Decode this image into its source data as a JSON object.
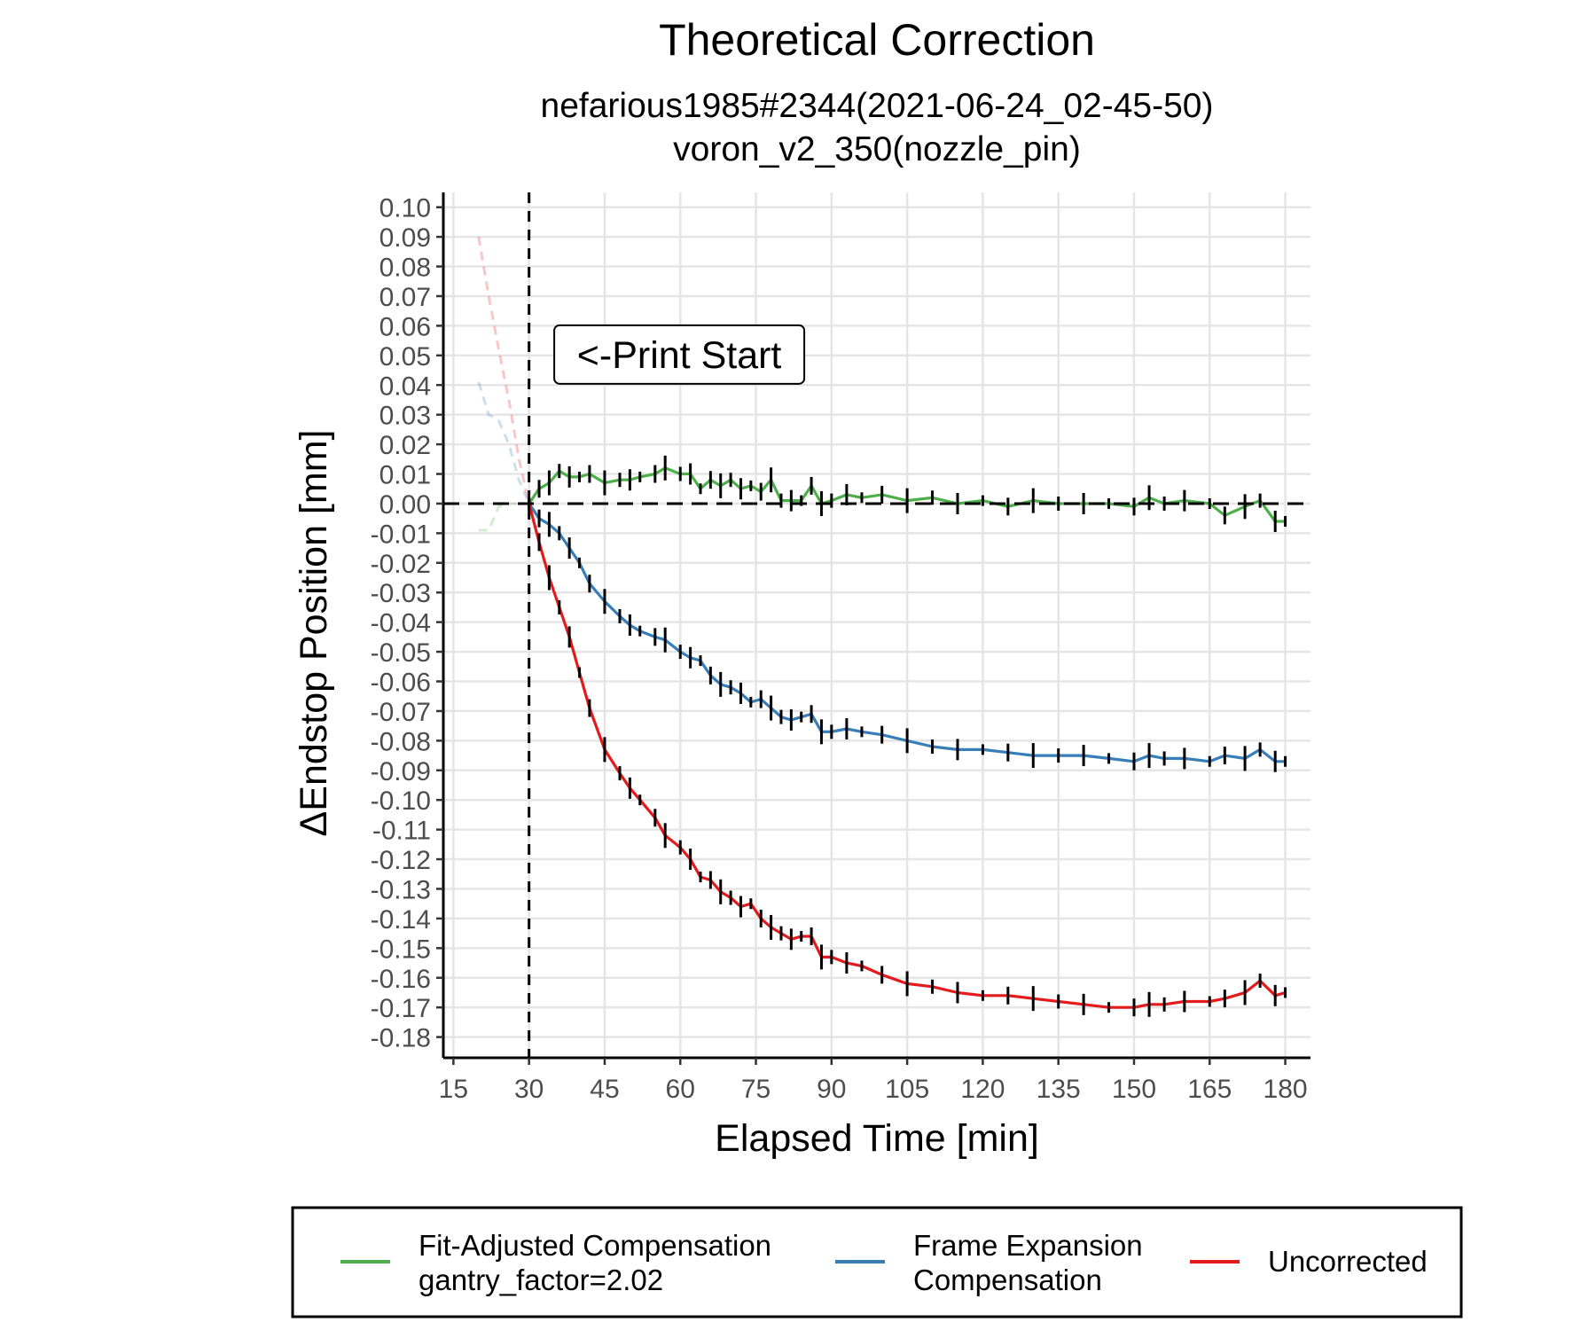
{
  "chart_data": {
    "type": "line",
    "title": "Theoretical Correction",
    "subtitle_lines": [
      "nefarious1985#2344(2021-06-24_02-45-50)",
      "voron_v2_350(nozzle_pin)"
    ],
    "xlabel": "Elapsed Time [min]",
    "ylabel": "ΔEndstop Position [mm]",
    "xlim": [
      13,
      185
    ],
    "ylim": [
      -0.187,
      0.105
    ],
    "xticks": [
      15,
      30,
      45,
      60,
      75,
      90,
      105,
      120,
      135,
      150,
      165,
      180
    ],
    "xtick_labels": [
      "15",
      "30",
      "45",
      "60",
      "75",
      "90",
      "105",
      "120",
      "135",
      "150",
      "165",
      "180"
    ],
    "yticks": [
      0.1,
      0.09,
      0.08,
      0.07,
      0.06,
      0.05,
      0.04,
      0.03,
      0.02,
      0.01,
      0.0,
      -0.01,
      -0.02,
      -0.03,
      -0.04,
      -0.05,
      -0.06,
      -0.07,
      -0.08,
      -0.09,
      -0.1,
      -0.11,
      -0.12,
      -0.13,
      -0.14,
      -0.15,
      -0.16,
      -0.17,
      -0.18
    ],
    "ytick_labels": [
      "0.10",
      "0.09",
      "0.08",
      "0.07",
      "0.06",
      "0.05",
      "0.04",
      "0.03",
      "0.02",
      "0.01",
      "0.00",
      "-0.01",
      "-0.02",
      "-0.03",
      "-0.04",
      "-0.05",
      "-0.06",
      "-0.07",
      "-0.08",
      "-0.09",
      "-0.10",
      "-0.11",
      "-0.12",
      "-0.13",
      "-0.14",
      "-0.15",
      "-0.16",
      "-0.17",
      "-0.18"
    ],
    "grid": true,
    "reference_lines": {
      "vertical_x": 30,
      "horizontal_y": 0.0,
      "style": "dashed"
    },
    "annotation": {
      "text": "<-Print Start",
      "x": 35,
      "y": 0.05
    },
    "pre_print_series": [
      {
        "series_ref": "Uncorrected",
        "x": [
          20,
          22,
          24,
          26,
          28,
          30
        ],
        "y": [
          0.09,
          0.07,
          0.052,
          0.035,
          0.015,
          0.0
        ]
      },
      {
        "series_ref": "Frame Expansion",
        "x": [
          20,
          22,
          24,
          26,
          28,
          30
        ],
        "y": [
          0.041,
          0.03,
          0.028,
          0.02,
          0.008,
          0.0
        ]
      },
      {
        "series_ref": "Fit-Adjusted",
        "x": [
          20,
          22,
          24,
          26,
          28,
          30
        ],
        "y": [
          -0.009,
          -0.009,
          -0.001,
          0.0,
          0.0,
          0.0
        ]
      }
    ],
    "series": [
      {
        "name": "Fit-Adjusted Compensation\ngantry_factor=2.02",
        "legend_lines": [
          "Fit-Adjusted Compensation",
          "gantry_factor=2.02"
        ],
        "color": "#4daf4a",
        "x": [
          30,
          32,
          34,
          36,
          38,
          40,
          42,
          45,
          48,
          50,
          52,
          55,
          57,
          60,
          62,
          64,
          66,
          68,
          70,
          72,
          74,
          76,
          78,
          80,
          82,
          84,
          86,
          88,
          90,
          93,
          96,
          100,
          105,
          110,
          115,
          120,
          125,
          130,
          135,
          140,
          145,
          150,
          153,
          156,
          160,
          165,
          168,
          172,
          175,
          178,
          180
        ],
        "y": [
          0.0,
          0.005,
          0.007,
          0.011,
          0.009,
          0.009,
          0.01,
          0.007,
          0.008,
          0.008,
          0.009,
          0.01,
          0.012,
          0.01,
          0.01,
          0.005,
          0.008,
          0.006,
          0.008,
          0.005,
          0.006,
          0.004,
          0.008,
          0.001,
          0.001,
          0.001,
          0.006,
          0.0,
          0.001,
          0.003,
          0.002,
          0.003,
          0.001,
          0.002,
          0.0,
          0.001,
          -0.001,
          0.001,
          0.0,
          0.0,
          0.0,
          -0.001,
          0.002,
          0.0,
          0.001,
          0.0,
          -0.004,
          -0.001,
          0.001,
          -0.006,
          -0.006
        ]
      },
      {
        "name": "Frame Expansion\nCompensation",
        "legend_lines": [
          "Frame Expansion",
          "Compensation"
        ],
        "color": "#377eb8",
        "x": [
          30,
          32,
          34,
          36,
          38,
          40,
          42,
          45,
          48,
          50,
          52,
          55,
          57,
          60,
          62,
          64,
          66,
          68,
          70,
          72,
          74,
          76,
          78,
          80,
          82,
          84,
          86,
          88,
          90,
          93,
          96,
          100,
          105,
          110,
          115,
          120,
          125,
          130,
          135,
          140,
          145,
          150,
          153,
          156,
          160,
          165,
          168,
          172,
          175,
          178,
          180
        ],
        "y": [
          0.0,
          -0.005,
          -0.007,
          -0.01,
          -0.015,
          -0.02,
          -0.027,
          -0.033,
          -0.038,
          -0.041,
          -0.043,
          -0.045,
          -0.046,
          -0.05,
          -0.052,
          -0.053,
          -0.058,
          -0.061,
          -0.062,
          -0.064,
          -0.067,
          -0.066,
          -0.069,
          -0.072,
          -0.073,
          -0.072,
          -0.071,
          -0.077,
          -0.077,
          -0.076,
          -0.077,
          -0.078,
          -0.08,
          -0.082,
          -0.083,
          -0.083,
          -0.084,
          -0.085,
          -0.085,
          -0.085,
          -0.086,
          -0.087,
          -0.085,
          -0.086,
          -0.086,
          -0.087,
          -0.085,
          -0.086,
          -0.083,
          -0.087,
          -0.087
        ]
      },
      {
        "name": "Uncorrected",
        "legend_lines": [
          "Uncorrected"
        ],
        "color": "#e41a1c",
        "x": [
          30,
          32,
          34,
          36,
          38,
          40,
          42,
          45,
          48,
          50,
          52,
          55,
          57,
          60,
          62,
          64,
          66,
          68,
          70,
          72,
          74,
          76,
          78,
          80,
          82,
          84,
          86,
          88,
          90,
          93,
          96,
          100,
          105,
          110,
          115,
          120,
          125,
          130,
          135,
          140,
          145,
          150,
          153,
          156,
          160,
          165,
          168,
          172,
          175,
          178,
          180
        ],
        "y": [
          0.0,
          -0.013,
          -0.025,
          -0.035,
          -0.045,
          -0.057,
          -0.069,
          -0.083,
          -0.091,
          -0.096,
          -0.1,
          -0.106,
          -0.112,
          -0.116,
          -0.12,
          -0.126,
          -0.127,
          -0.131,
          -0.133,
          -0.136,
          -0.135,
          -0.14,
          -0.143,
          -0.145,
          -0.147,
          -0.146,
          -0.146,
          -0.153,
          -0.153,
          -0.155,
          -0.156,
          -0.159,
          -0.162,
          -0.163,
          -0.165,
          -0.166,
          -0.166,
          -0.167,
          -0.168,
          -0.169,
          -0.17,
          -0.17,
          -0.169,
          -0.169,
          -0.168,
          -0.168,
          -0.167,
          -0.165,
          -0.161,
          -0.166,
          -0.165
        ]
      }
    ],
    "legend_position": "bottom"
  }
}
